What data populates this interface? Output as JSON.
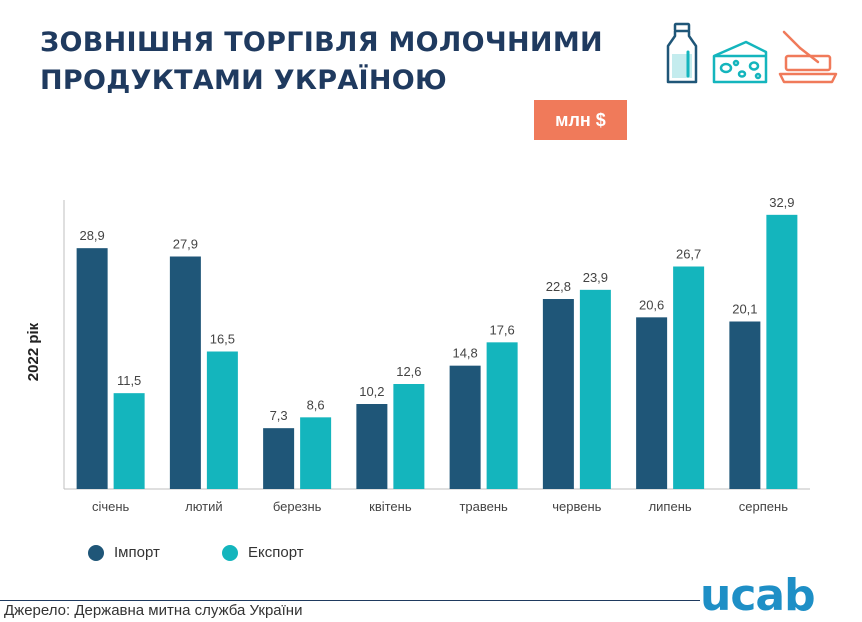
{
  "header": {
    "title_line1": "ЗОВНІШНЯ ТОРГІВЛЯ МОЛОЧНИМИ",
    "title_line2": "ПРОДУКТАМИ УКРАЇНОЮ",
    "unit_badge": "млн $"
  },
  "icons": [
    "milk-bottle-icon",
    "cheese-icon",
    "butter-icon"
  ],
  "colors": {
    "import": "#1f5678",
    "export": "#14b5bd",
    "title": "#1f3a5f",
    "badge": "#f07a5a",
    "logo": "#1e8fc6"
  },
  "chart_data": {
    "type": "bar",
    "ylabel": "2022 рік",
    "categories": [
      "січень",
      "лютий",
      "березнь",
      "квітень",
      "травень",
      "червень",
      "липень",
      "серпень"
    ],
    "series": [
      {
        "name": "Імпорт",
        "values": [
          28.9,
          27.9,
          7.3,
          10.2,
          14.8,
          22.8,
          20.6,
          20.1
        ],
        "labels": [
          "28,9",
          "27,9",
          "7,3",
          "10,2",
          "14,8",
          "22,8",
          "20,6",
          "20,1"
        ]
      },
      {
        "name": "Експорт",
        "values": [
          11.5,
          16.5,
          8.6,
          12.6,
          17.6,
          23.9,
          26.7,
          32.9
        ],
        "labels": [
          "11,5",
          "16,5",
          "8,6",
          "12,6",
          "17,6",
          "23,9",
          "26,7",
          "32,9"
        ]
      }
    ],
    "ylim": [
      0,
      33
    ],
    "grid": false,
    "legend_position": "bottom-left"
  },
  "legend": {
    "import_label": "Імпорт",
    "export_label": "Експорт"
  },
  "footer": {
    "source": "Джерело: Державна митна служба України",
    "logo_text": "ucab"
  }
}
